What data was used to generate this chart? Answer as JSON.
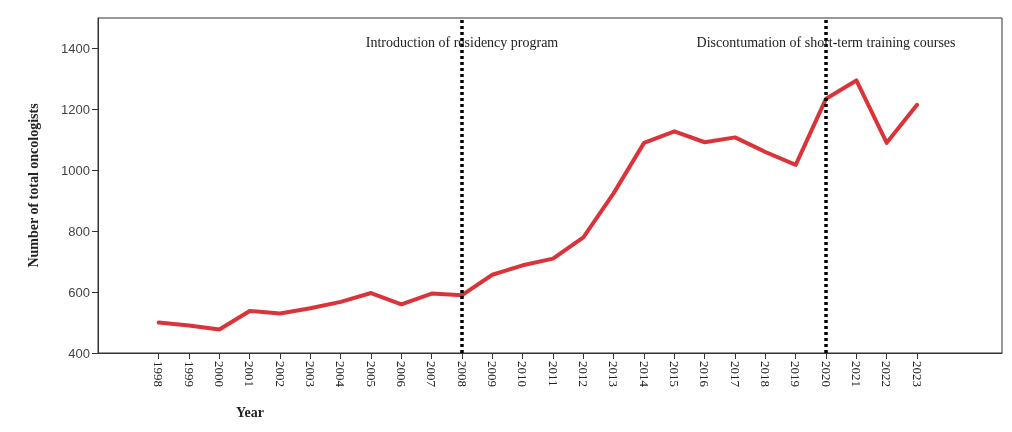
{
  "chart_data": {
    "type": "line",
    "xlabel": "Year",
    "ylabel": "Number of total oncologists",
    "x": [
      1998,
      1999,
      2000,
      2001,
      2002,
      2003,
      2004,
      2005,
      2006,
      2007,
      2008,
      2009,
      2010,
      2011,
      2012,
      2013,
      2014,
      2015,
      2016,
      2017,
      2018,
      2019,
      2020,
      2021,
      2022,
      2023
    ],
    "series": [
      {
        "color": "#d9343a",
        "values": [
          500,
          490,
          477,
          538,
          530,
          547,
          568,
          597,
          560,
          595,
          590,
          657,
          688,
          710,
          780,
          925,
          1090,
          1128,
          1092,
          1108,
          1060,
          1018,
          1235,
          1295,
          1090,
          1215
        ]
      }
    ],
    "xlim": [
      1996,
      2025.8
    ],
    "xticks": [
      1998,
      1999,
      2000,
      2001,
      2002,
      2003,
      2004,
      2005,
      2006,
      2007,
      2008,
      2009,
      2010,
      2011,
      2012,
      2013,
      2014,
      2015,
      2016,
      2017,
      2018,
      2019,
      2020,
      2021,
      2022,
      2023
    ],
    "ylim": [
      400,
      1500
    ],
    "yticks": [
      400,
      600,
      800,
      1000,
      1200,
      1400
    ],
    "ref_lines": [
      {
        "axis": "x",
        "value": 2008,
        "label": "Introduction of residency program",
        "color": "#000000",
        "line_style": "dotted"
      },
      {
        "axis": "x",
        "value": 2020,
        "label": "Discontumation of short-term training courses",
        "color": "#000000",
        "line_style": "dotted"
      }
    ],
    "grid": false,
    "marker": "none",
    "line_style": "solid"
  }
}
